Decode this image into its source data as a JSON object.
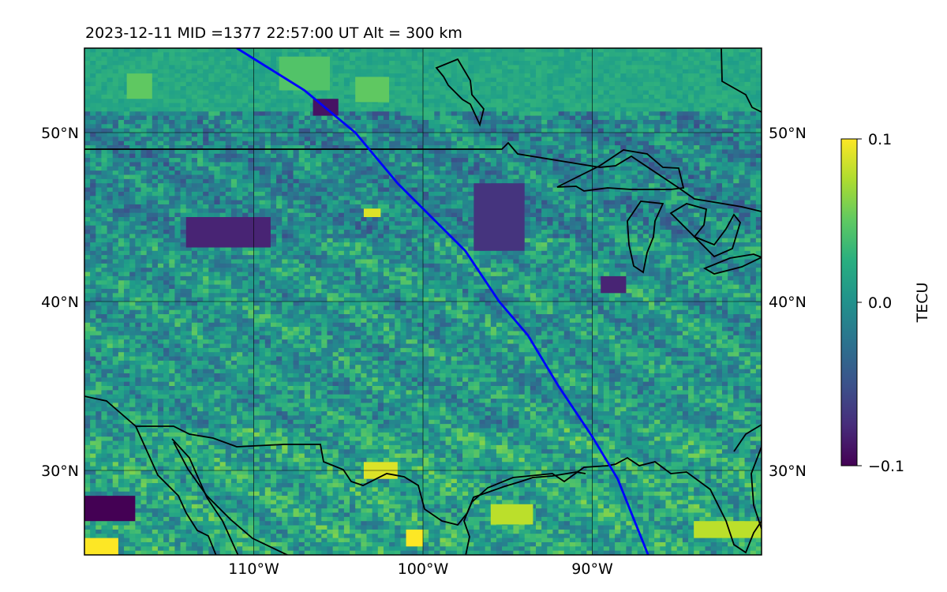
{
  "chart_data": {
    "type": "heatmap",
    "title": "2023-12-11  MID =1377    22:57:00  UT  Alt = 300 km",
    "lon_range": [
      -120,
      -80
    ],
    "lat_range": [
      25,
      55
    ],
    "x_ticks": [
      {
        "value": -110,
        "label": "110°W"
      },
      {
        "value": -100,
        "label": "100°W"
      },
      {
        "value": -90,
        "label": "90°W"
      }
    ],
    "y_ticks": [
      {
        "value": 50,
        "label": "50°N"
      },
      {
        "value": 40,
        "label": "40°N"
      },
      {
        "value": 30,
        "label": "30°N"
      }
    ],
    "grid": true,
    "colormap": "viridis",
    "colorbar": {
      "label": "TECU",
      "range": [
        -0.1,
        0.1
      ],
      "ticks": [
        {
          "value": 0.1,
          "label": "0.1"
        },
        {
          "value": 0.0,
          "label": "0.0"
        },
        {
          "value": -0.1,
          "label": "−0.1"
        }
      ]
    },
    "track_color": "#0000ff",
    "track": [
      {
        "lon": -111.0,
        "lat": 55.0
      },
      {
        "lon": -107.0,
        "lat": 52.5
      },
      {
        "lon": -104.0,
        "lat": 50.0
      },
      {
        "lon": -101.5,
        "lat": 47.0
      },
      {
        "lon": -99.5,
        "lat": 45.0
      },
      {
        "lon": -97.5,
        "lat": 43.0
      },
      {
        "lon": -95.5,
        "lat": 40.0
      },
      {
        "lon": -93.8,
        "lat": 38.0
      },
      {
        "lon": -92.0,
        "lat": 35.0
      },
      {
        "lon": -90.0,
        "lat": 32.0
      },
      {
        "lon": -88.5,
        "lat": 29.5
      },
      {
        "lon": -86.7,
        "lat": 25.0
      }
    ],
    "notable_regions": [
      {
        "lon": [
          -120,
          -117
        ],
        "lat": [
          27,
          28.5
        ],
        "value": -0.1
      },
      {
        "lon": [
          -120,
          -118
        ],
        "lat": [
          25,
          26
        ],
        "value": 0.1
      },
      {
        "lon": [
          -106.5,
          -105
        ],
        "lat": [
          51,
          52
        ],
        "value": -0.09
      },
      {
        "lon": [
          -117.5,
          -116
        ],
        "lat": [
          52,
          53.5
        ],
        "value": 0.05
      },
      {
        "lon": [
          -108.5,
          -105.5
        ],
        "lat": [
          52.5,
          54.5
        ],
        "value": 0.045
      },
      {
        "lon": [
          -104,
          -102
        ],
        "lat": [
          51.8,
          53.3
        ],
        "value": 0.05
      },
      {
        "lon": [
          -103.5,
          -101.5
        ],
        "lat": [
          29.5,
          30.5
        ],
        "value": 0.09
      },
      {
        "lon": [
          -101,
          -100
        ],
        "lat": [
          25.5,
          26.5
        ],
        "value": 0.1
      },
      {
        "lon": [
          -96,
          -93.5
        ],
        "lat": [
          26.8,
          28
        ],
        "value": 0.08
      },
      {
        "lon": [
          -84,
          -80
        ],
        "lat": [
          26,
          27
        ],
        "value": 0.08
      },
      {
        "lon": [
          -103.5,
          -102.5
        ],
        "lat": [
          45,
          45.5
        ],
        "value": 0.09
      },
      {
        "lon": [
          -114,
          -109
        ],
        "lat": [
          43.2,
          45
        ],
        "value": -0.08
      },
      {
        "lon": [
          -97,
          -94
        ],
        "lat": [
          43,
          47
        ],
        "value": -0.07
      },
      {
        "lon": [
          -89.5,
          -88
        ],
        "lat": [
          40.5,
          41.5
        ],
        "value": -0.08
      }
    ]
  }
}
